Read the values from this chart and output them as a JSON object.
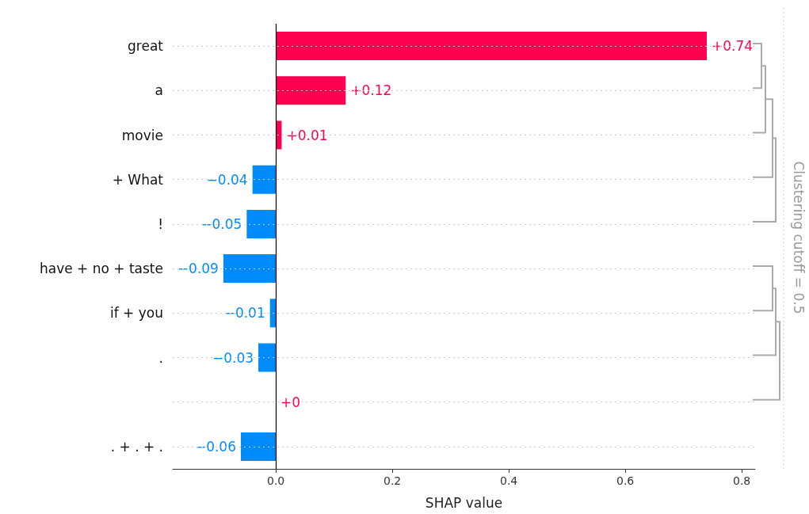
{
  "chart_data": {
    "type": "bar",
    "orientation": "horizontal",
    "xlabel": "SHAP value",
    "categories": [
      "great",
      "a",
      "movie",
      "+ What",
      "!",
      "have + no + taste",
      "if + you",
      ".",
      null,
      ". + . + ."
    ],
    "values": [
      0.74,
      0.12,
      0.01,
      -0.04,
      -0.05,
      -0.09,
      -0.01,
      -0.03,
      0,
      -0.06
    ],
    "value_labels": [
      "+0.74",
      "+0.12",
      "+0.01",
      "−0.04",
      "−0.05",
      "−0.09",
      "−0.01",
      "−0.03",
      "+0",
      "−0.06"
    ],
    "colors": [
      "#ff0051",
      "#ff0051",
      "#ff0051",
      "#008bfb",
      "#008bfb",
      "#008bfb",
      "#008bfb",
      "#008bfb",
      "#ff0051",
      "#008bfb"
    ],
    "xlim": [
      -0.177,
      0.823
    ],
    "xticks": [
      {
        "value": 0,
        "label": "0.0"
      },
      {
        "value": 0.2,
        "label": "0.2"
      },
      {
        "value": 0.4,
        "label": "0.4"
      },
      {
        "value": 0.6,
        "label": "0.6"
      },
      {
        "value": 0.8,
        "label": "0.8"
      }
    ],
    "grid": "y",
    "ref_lines": [
      {
        "axis": "x",
        "value": 0,
        "color": "#000000"
      }
    ],
    "annotations": [
      "Clustering cutoff = 0.5"
    ]
  }
}
